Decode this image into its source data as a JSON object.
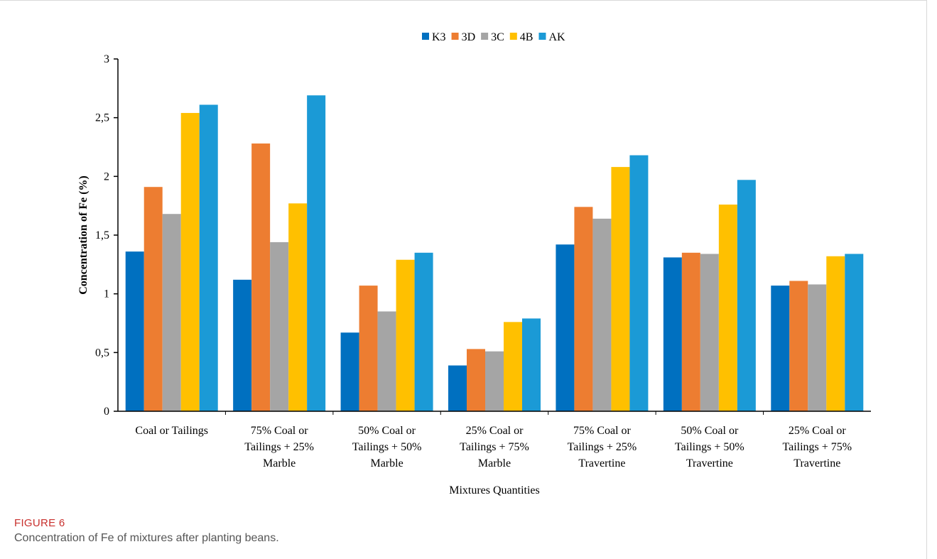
{
  "figure": {
    "label": "FIGURE 6",
    "caption": "Concentration of Fe of mixtures after planting beans."
  },
  "chart_data": {
    "type": "bar",
    "title": "",
    "xlabel": "Mixtures Quantities",
    "ylabel": "Concentration of Fe (%)",
    "ylim": [
      0,
      3
    ],
    "yticks": [
      "0",
      "0,5",
      "1",
      "1,5",
      "2",
      "2,5",
      "3"
    ],
    "ytick_values": [
      0,
      0.5,
      1,
      1.5,
      2,
      2.5,
      3
    ],
    "grid": false,
    "legend_position": "top-center",
    "categories": [
      [
        "Coal or Tailings"
      ],
      [
        "75% Coal or",
        "Tailings  + 25%",
        "Marble"
      ],
      [
        "50% Coal or",
        "Tailings + 50%",
        "Marble"
      ],
      [
        "25% Coal or",
        "Tailings + 75%",
        "Marble"
      ],
      [
        "75% Coal or",
        "Tailings + 25%",
        "Travertine"
      ],
      [
        "50% Coal or",
        "Tailings + 50%",
        "Travertine"
      ],
      [
        "25% Coal or",
        "Tailings + 75%",
        "Travertine"
      ]
    ],
    "series": [
      {
        "name": "K3",
        "color": "#0070c0",
        "values": [
          1.36,
          1.12,
          0.67,
          0.39,
          1.42,
          1.31,
          1.07
        ]
      },
      {
        "name": "3D",
        "color": "#ed7d31",
        "values": [
          1.91,
          2.28,
          1.07,
          0.53,
          1.74,
          1.35,
          1.11
        ]
      },
      {
        "name": "3C",
        "color": "#a5a5a5",
        "values": [
          1.68,
          1.44,
          0.85,
          0.51,
          1.64,
          1.34,
          1.08
        ]
      },
      {
        "name": "4B",
        "color": "#ffc000",
        "values": [
          2.54,
          1.77,
          1.29,
          0.76,
          2.08,
          1.76,
          1.32
        ]
      },
      {
        "name": "AK",
        "color": "#1b9ad6",
        "values": [
          2.61,
          2.69,
          1.35,
          0.79,
          2.18,
          1.97,
          1.34
        ]
      }
    ]
  }
}
